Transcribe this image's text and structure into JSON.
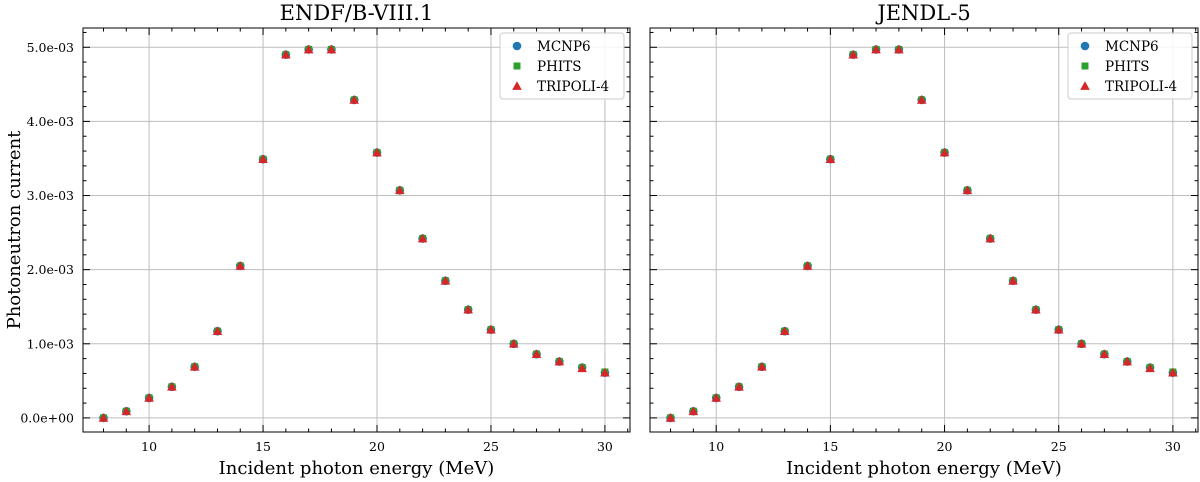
{
  "chart_data": [
    {
      "type": "scatter",
      "title": "ENDF/B-VIII.1",
      "xlabel": "Incident photon energy (MeV)",
      "ylabel": "Photoneutron current",
      "xlim": [
        7.1,
        31.1
      ],
      "ylim": [
        -0.00019,
        0.00526
      ],
      "xticks": [
        10,
        15,
        20,
        25,
        30
      ],
      "xtick_labels": [
        "10",
        "15",
        "20",
        "25",
        "30"
      ],
      "yticks": [
        0,
        0.001,
        0.002,
        0.003,
        0.004,
        0.005
      ],
      "ytick_labels": [
        "0.0e+00",
        "1.0e-03",
        "2.0e-03",
        "3.0e-03",
        "4.0e-03",
        "5.0e-03"
      ],
      "grid": true,
      "legend_position": "top-right",
      "x": [
        8,
        9,
        10,
        11,
        12,
        13,
        14,
        15,
        16,
        17,
        18,
        19,
        20,
        21,
        22,
        23,
        24,
        25,
        26,
        27,
        28,
        29,
        30
      ],
      "series": [
        {
          "name": "MCNP6",
          "marker": "circle",
          "color": "#1f77b4",
          "values": [
            0.0,
            9e-05,
            0.00027,
            0.00042,
            0.00069,
            0.00117,
            0.00205,
            0.00349,
            0.0049,
            0.00497,
            0.00497,
            0.00429,
            0.00358,
            0.00307,
            0.00242,
            0.00185,
            0.00146,
            0.00119,
            0.001,
            0.00086,
            0.00076,
            0.00068,
            0.00061
          ]
        },
        {
          "name": "PHITS",
          "marker": "square",
          "color": "#2ca02c",
          "values": [
            0.0,
            9e-05,
            0.00027,
            0.00042,
            0.00069,
            0.00117,
            0.00205,
            0.00349,
            0.0049,
            0.00497,
            0.00497,
            0.00429,
            0.00358,
            0.00307,
            0.00242,
            0.00185,
            0.00146,
            0.00119,
            0.001,
            0.00086,
            0.00076,
            0.00068,
            0.00062
          ]
        },
        {
          "name": "TRIPOLI-4",
          "marker": "triangle",
          "color": "#d62728",
          "values": [
            0.0,
            9e-05,
            0.00027,
            0.00042,
            0.00069,
            0.00117,
            0.00205,
            0.00349,
            0.0049,
            0.00497,
            0.00497,
            0.00429,
            0.00358,
            0.00307,
            0.00242,
            0.00185,
            0.00146,
            0.00119,
            0.001,
            0.00086,
            0.00076,
            0.00067,
            0.00061
          ]
        }
      ]
    },
    {
      "type": "scatter",
      "title": "JENDL-5",
      "xlabel": "Incident photon energy (MeV)",
      "ylabel": "",
      "xlim": [
        7.1,
        31.1
      ],
      "ylim": [
        -0.00019,
        0.00526
      ],
      "xticks": [
        10,
        15,
        20,
        25,
        30
      ],
      "xtick_labels": [
        "10",
        "15",
        "20",
        "25",
        "30"
      ],
      "yticks": [
        0,
        0.001,
        0.002,
        0.003,
        0.004,
        0.005
      ],
      "ytick_labels": [
        "",
        "",
        "",
        "",
        "",
        ""
      ],
      "grid": true,
      "legend_position": "top-right",
      "x": [
        8,
        9,
        10,
        11,
        12,
        13,
        14,
        15,
        16,
        17,
        18,
        19,
        20,
        21,
        22,
        23,
        24,
        25,
        26,
        27,
        28,
        29,
        30
      ],
      "series": [
        {
          "name": "MCNP6",
          "marker": "circle",
          "color": "#1f77b4",
          "values": [
            0.0,
            9e-05,
            0.00027,
            0.00042,
            0.00069,
            0.00117,
            0.00205,
            0.00349,
            0.0049,
            0.00497,
            0.00497,
            0.00429,
            0.00358,
            0.00307,
            0.00242,
            0.00185,
            0.00146,
            0.00119,
            0.001,
            0.00086,
            0.00076,
            0.00068,
            0.00061
          ]
        },
        {
          "name": "PHITS",
          "marker": "square",
          "color": "#2ca02c",
          "values": [
            0.0,
            9e-05,
            0.00027,
            0.00042,
            0.00069,
            0.00117,
            0.00205,
            0.00349,
            0.0049,
            0.00497,
            0.00497,
            0.00429,
            0.00358,
            0.00307,
            0.00242,
            0.00185,
            0.00146,
            0.00119,
            0.001,
            0.00086,
            0.00076,
            0.00068,
            0.00062
          ]
        },
        {
          "name": "TRIPOLI-4",
          "marker": "triangle",
          "color": "#d62728",
          "values": [
            0.0,
            9e-05,
            0.00027,
            0.00042,
            0.00069,
            0.00117,
            0.00205,
            0.00349,
            0.0049,
            0.00497,
            0.00497,
            0.00429,
            0.00358,
            0.00307,
            0.00242,
            0.00185,
            0.00146,
            0.00119,
            0.001,
            0.00086,
            0.00076,
            0.00067,
            0.00061
          ]
        }
      ]
    }
  ]
}
